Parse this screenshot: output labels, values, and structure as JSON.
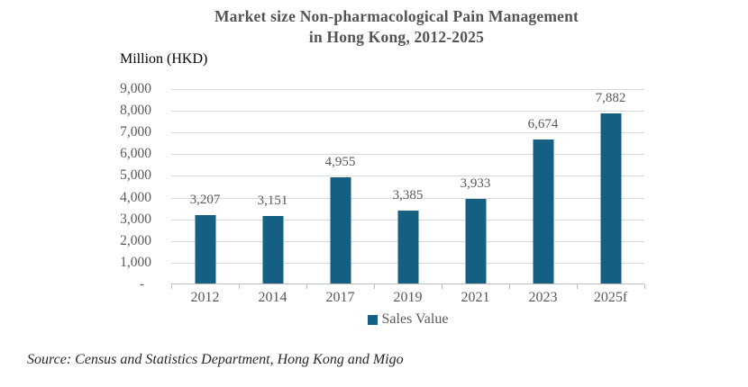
{
  "chart": {
    "title_line1": "Market size Non-pharmacological Pain Management",
    "title_line2": "in Hong Kong, 2012-2025",
    "y_unit_label": "Million (HKD)",
    "legend_label": "Sales Value",
    "source_text": "Source: Census and Statistics Department, Hong Kong and Migo",
    "colors": {
      "bar": "#156082",
      "gridline": "#d9d9d9",
      "axis_line": "#bdbdbd",
      "tick_text": "#595959",
      "title_text": "#545454"
    }
  },
  "chart_data": {
    "type": "bar",
    "title": "Market size Non-pharmacological Pain Management in Hong Kong, 2012-2025",
    "ylabel": "Million (HKD)",
    "xlabel": "",
    "categories": [
      "2012",
      "2014",
      "2017",
      "2019",
      "2021",
      "2023",
      "2025f"
    ],
    "series": [
      {
        "name": "Sales Value",
        "values": [
          3207,
          3151,
          4955,
          3385,
          3933,
          6674,
          7882
        ]
      }
    ],
    "value_labels": [
      "3,207",
      "3,151",
      "4,955",
      "3,385",
      "3,933",
      "6,674",
      "7,882"
    ],
    "ylim": [
      0,
      9000
    ],
    "ytick_interval": 1000,
    "ytick_labels": [
      "-",
      "1,000",
      "2,000",
      "3,000",
      "4,000",
      "5,000",
      "6,000",
      "7,000",
      "8,000",
      "9,000"
    ],
    "grid": true,
    "legend_position": "bottom"
  }
}
